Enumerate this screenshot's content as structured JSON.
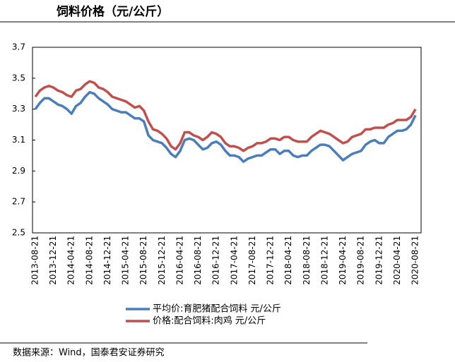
{
  "chart_data": {
    "type": "line",
    "title": "饲料价格（元/公斤）",
    "source": "数据来源：Wind，国泰君安证券研究",
    "categories": [
      "2013-08-21",
      null,
      null,
      null,
      "2013-12-21",
      null,
      null,
      null,
      "2014-04-21",
      null,
      null,
      null,
      "2014-08-21",
      null,
      null,
      null,
      "2014-12-21",
      null,
      null,
      null,
      "2015-04-21",
      null,
      null,
      null,
      "2015-08-21",
      null,
      null,
      null,
      "2015-12-21",
      null,
      null,
      null,
      "2016-04-21",
      null,
      null,
      null,
      "2016-08-21",
      null,
      null,
      null,
      "2016-12-21",
      null,
      null,
      null,
      "2017-04-21",
      null,
      null,
      null,
      "2017-08-21",
      null,
      null,
      null,
      "2017-12-21",
      null,
      null,
      null,
      "2018-04-21",
      null,
      null,
      null,
      "2018-08-21",
      null,
      null,
      null,
      "2018-12-21",
      null,
      null,
      null,
      "2019-04-21",
      null,
      null,
      null,
      "2019-08-21",
      null,
      null,
      null,
      "2019-12-21",
      null,
      null,
      null,
      "2020-04-21",
      null,
      null,
      null,
      "2020-08-21"
    ],
    "series": [
      {
        "name": "平均价:育肥猪配合饲料 元/公斤",
        "color": "#4a7ebb",
        "values": [
          3.3,
          3.34,
          3.37,
          3.37,
          3.35,
          3.33,
          3.32,
          3.3,
          3.27,
          3.32,
          3.34,
          3.38,
          3.41,
          3.4,
          3.37,
          3.35,
          3.33,
          3.3,
          3.29,
          3.28,
          3.28,
          3.26,
          3.24,
          3.24,
          3.22,
          3.13,
          3.1,
          3.09,
          3.08,
          3.05,
          3.01,
          2.99,
          3.03,
          3.1,
          3.11,
          3.1,
          3.07,
          3.04,
          3.05,
          3.08,
          3.09,
          3.07,
          3.03,
          3.0,
          3.0,
          2.99,
          2.96,
          2.98,
          2.99,
          3.0,
          3.0,
          3.02,
          3.04,
          3.04,
          3.01,
          3.03,
          3.03,
          3.0,
          2.99,
          3.0,
          3.0,
          3.03,
          3.05,
          3.07,
          3.07,
          3.06,
          3.03,
          3.0,
          2.97,
          2.99,
          3.01,
          3.02,
          3.03,
          3.07,
          3.09,
          3.1,
          3.08,
          3.08,
          3.12,
          3.14,
          3.16,
          3.16,
          3.17,
          3.2,
          3.26
        ]
      },
      {
        "name": "价格:配合饲料:肉鸡 元/公斤",
        "color": "#c0504d",
        "values": [
          3.38,
          3.42,
          3.44,
          3.45,
          3.44,
          3.42,
          3.41,
          3.39,
          3.38,
          3.42,
          3.43,
          3.46,
          3.48,
          3.47,
          3.44,
          3.43,
          3.41,
          3.38,
          3.37,
          3.36,
          3.35,
          3.33,
          3.31,
          3.32,
          3.29,
          3.22,
          3.17,
          3.16,
          3.14,
          3.11,
          3.06,
          3.04,
          3.08,
          3.15,
          3.15,
          3.13,
          3.12,
          3.1,
          3.12,
          3.15,
          3.14,
          3.12,
          3.08,
          3.06,
          3.06,
          3.05,
          3.03,
          3.05,
          3.06,
          3.08,
          3.08,
          3.09,
          3.11,
          3.11,
          3.1,
          3.12,
          3.12,
          3.1,
          3.09,
          3.09,
          3.09,
          3.12,
          3.14,
          3.16,
          3.15,
          3.14,
          3.12,
          3.1,
          3.08,
          3.09,
          3.12,
          3.13,
          3.14,
          3.17,
          3.17,
          3.18,
          3.18,
          3.18,
          3.2,
          3.21,
          3.23,
          3.23,
          3.23,
          3.25,
          3.3
        ]
      }
    ],
    "ylim": [
      2.5,
      3.7
    ],
    "yticks": [
      2.5,
      2.7,
      2.9,
      3.1,
      3.3,
      3.5,
      3.7
    ],
    "grid": false
  }
}
